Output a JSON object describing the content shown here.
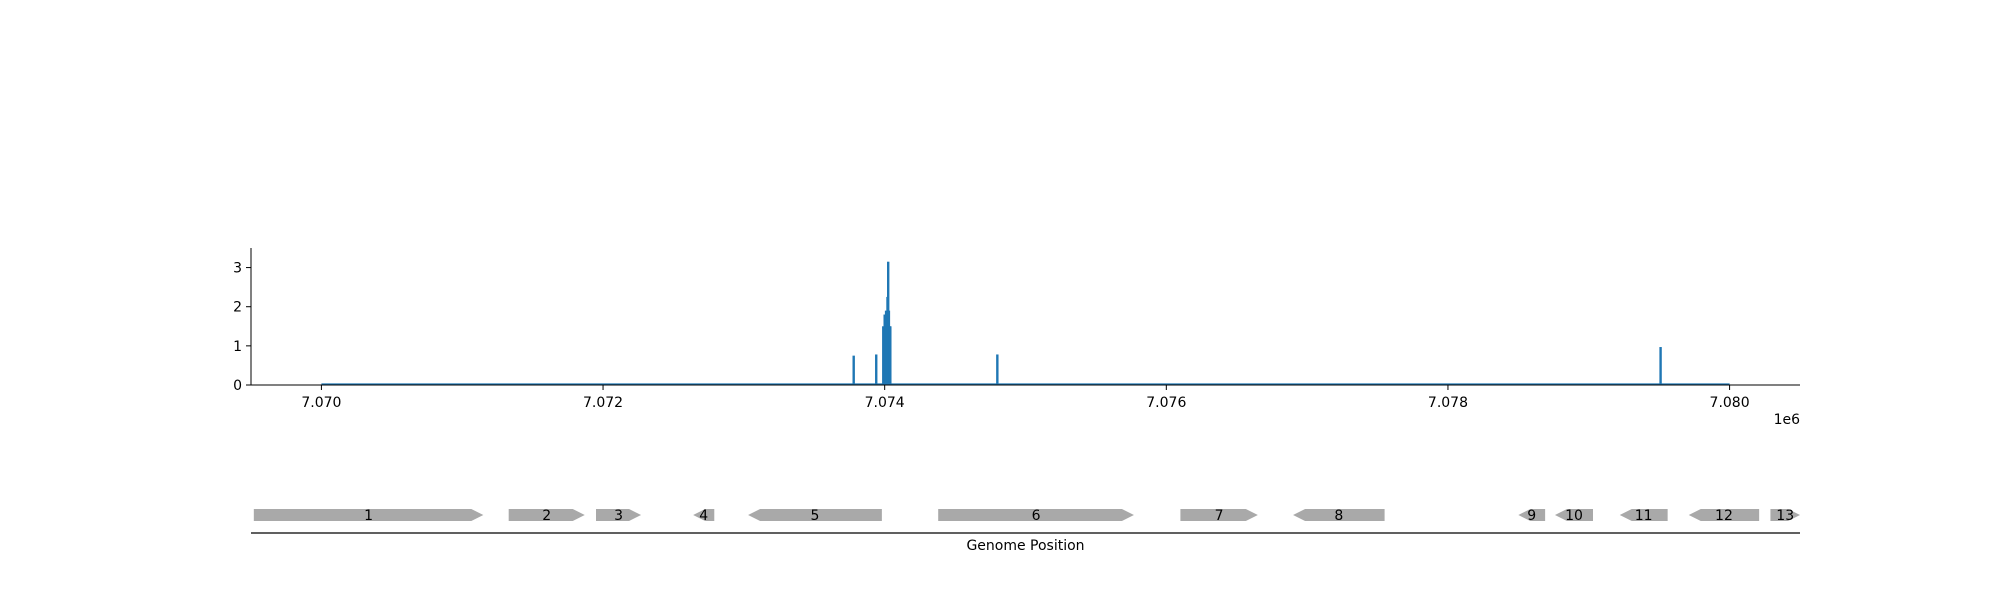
{
  "colors": {
    "signal": "#1f77b4",
    "gene": "#a9a9a9",
    "axis": "#000000"
  },
  "chart_data": [
    {
      "type": "bar",
      "description_role": "coverage track",
      "xlim": [
        7069500,
        7080500
      ],
      "ylim": [
        0,
        3.5
      ],
      "yticks": [
        0,
        1,
        2,
        3
      ],
      "ytick_labels": [
        "0",
        "1",
        "2",
        "3"
      ],
      "xticks": [
        7070000,
        7072000,
        7074000,
        7076000,
        7078000,
        7080000
      ],
      "xtick_labels": [
        "7.070",
        "7.072",
        "7.074",
        "7.076",
        "7.078",
        "7.080"
      ],
      "x_offset_label": "1e6",
      "baseline": [
        7070000,
        7080000
      ],
      "x": [
        7073780,
        7073940,
        7073975,
        7073990,
        7074000,
        7074005,
        7074010,
        7074015,
        7074020,
        7074025,
        7074030,
        7074035,
        7074040,
        7074800,
        7079510
      ],
      "values": [
        0.75,
        0.78,
        0.0,
        1.5,
        1.8,
        1.5,
        1.9,
        1.5,
        2.25,
        3.15,
        1.9,
        1.5,
        1.5,
        0.78,
        0.97
      ]
    },
    {
      "type": "gene-map",
      "xlabel": "Genome Position",
      "genes": [
        {
          "label": "1",
          "start": 7069520,
          "end": 7071150,
          "strand": "+"
        },
        {
          "label": "2",
          "start": 7071330,
          "end": 7071870,
          "strand": "+"
        },
        {
          "label": "3",
          "start": 7071950,
          "end": 7072270,
          "strand": "+"
        },
        {
          "label": "4",
          "start": 7072640,
          "end": 7072790,
          "strand": "-"
        },
        {
          "label": "5",
          "start": 7073030,
          "end": 7073980,
          "strand": "-"
        },
        {
          "label": "6",
          "start": 7074380,
          "end": 7075770,
          "strand": "+"
        },
        {
          "label": "7",
          "start": 7076100,
          "end": 7076650,
          "strand": "+"
        },
        {
          "label": "8",
          "start": 7076900,
          "end": 7077550,
          "strand": "-"
        },
        {
          "label": "9",
          "start": 7078500,
          "end": 7078690,
          "strand": "-"
        },
        {
          "label": "10",
          "start": 7078760,
          "end": 7079030,
          "strand": "-"
        },
        {
          "label": "11",
          "start": 7079220,
          "end": 7079560,
          "strand": "-"
        },
        {
          "label": "12",
          "start": 7079710,
          "end": 7080210,
          "strand": "-"
        },
        {
          "label": "13",
          "start": 7080290,
          "end": 7080500,
          "strand": "+"
        }
      ]
    }
  ]
}
